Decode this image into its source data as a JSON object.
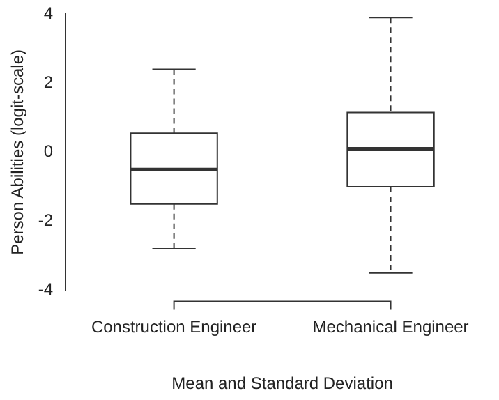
{
  "chart_data": {
    "type": "box",
    "xlabel": "Mean and Standard Deviation",
    "ylabel": "Person Abilities (logit-scale)",
    "categories": [
      "Construction Engineer",
      "Mechanical Engineer"
    ],
    "boxes": [
      {
        "low": -2.8,
        "q1": -1.5,
        "median": -0.5,
        "q3": 0.55,
        "high": 2.4
      },
      {
        "low": -3.5,
        "q1": -1.0,
        "median": 0.1,
        "q3": 1.15,
        "high": 3.9
      }
    ],
    "ylim": [
      -4,
      4
    ],
    "yticks": [
      -4,
      -2,
      0,
      2,
      4
    ],
    "grid": false,
    "legend": false
  }
}
